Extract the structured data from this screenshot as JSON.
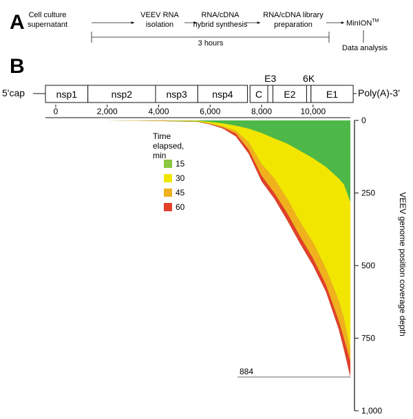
{
  "panel_a": {
    "letter": "A",
    "steps": [
      {
        "line1": "Cell culture",
        "line2": "supernatant"
      },
      {
        "line1": "VEEV RNA",
        "line2": "isolation"
      },
      {
        "line1": "RNA/cDNA",
        "line2": "hybrid synthesis"
      },
      {
        "line1": "RNA/cDNA library",
        "line2": "preparation"
      }
    ],
    "final_step": {
      "text": "MinION",
      "sup": "TM"
    },
    "duration_label": "3 hours",
    "output_label": "Data analysis"
  },
  "panel_b": {
    "letter": "B",
    "cap_label": "5ʹcap",
    "tail_label": "Poly(A)-3ʹ",
    "genes": [
      {
        "label": "nsp1",
        "start": -400,
        "end": 1250
      },
      {
        "label": "nsp2",
        "start": 1250,
        "end": 3880
      },
      {
        "label": "nsp3",
        "start": 3880,
        "end": 5520
      },
      {
        "label": "nsp4",
        "start": 5520,
        "end": 7450
      },
      {
        "label": "C",
        "start": 7550,
        "end": 8240
      },
      {
        "label": "E3",
        "start": 8240,
        "end": 8440
      },
      {
        "label": "E2",
        "start": 8440,
        "end": 9750
      },
      {
        "label": "6K",
        "start": 9750,
        "end": 9920
      },
      {
        "label": "E1",
        "start": 9920,
        "end": 11560
      }
    ]
  },
  "chart_data": {
    "type": "area",
    "xlabel": "",
    "ylabel": "VEEV genome position coverage depth",
    "x_ticks": [
      "0",
      "2,000",
      "4,000",
      "6,000",
      "8,000",
      "10,000"
    ],
    "x_tick_values": [
      0,
      2000,
      4000,
      6000,
      8000,
      10000
    ],
    "xlim": [
      -400,
      11450
    ],
    "y_ticks": [
      "0",
      "250",
      "500",
      "750",
      "1,000"
    ],
    "y_tick_values": [
      0,
      250,
      500,
      750,
      1000
    ],
    "ylim": [
      0,
      1000
    ],
    "y_inverted": true,
    "legend_title": "Time elapsed, min",
    "legend_position": "upper-middle",
    "annotation": "884",
    "annotation_value": 884,
    "series": [
      {
        "name": "15",
        "color": "#8dc63f",
        "x": [
          -400,
          2000,
          4000,
          5500,
          6000,
          6500,
          7000,
          7500,
          8000,
          8500,
          9000,
          9500,
          10000,
          10500,
          11000,
          11200,
          11450
        ],
        "y": [
          0,
          0,
          0,
          1,
          5,
          10,
          18,
          28,
          43,
          62,
          80,
          105,
          130,
          160,
          200,
          220,
          280
        ]
      },
      {
        "name": "30",
        "color": "#f2e600",
        "x": [
          -400,
          2000,
          4000,
          5500,
          6000,
          6500,
          7000,
          7500,
          8000,
          8500,
          9000,
          9500,
          10000,
          10500,
          11000,
          11200,
          11450
        ],
        "y": [
          0,
          0,
          1,
          3,
          10,
          20,
          35,
          75,
          150,
          200,
          270,
          350,
          420,
          510,
          620,
          680,
          790
        ]
      },
      {
        "name": "45",
        "color": "#f0b11d",
        "x": [
          -400,
          2000,
          4000,
          5500,
          6000,
          6500,
          7000,
          7500,
          8000,
          8500,
          9000,
          9500,
          10000,
          10500,
          11000,
          11200,
          11450
        ],
        "y": [
          0,
          0,
          1,
          4,
          12,
          24,
          45,
          100,
          190,
          250,
          320,
          400,
          475,
          565,
          690,
          750,
          830
        ]
      },
      {
        "name": "60",
        "color": "#e2402b",
        "x": [
          -400,
          2000,
          4000,
          5500,
          6000,
          6500,
          7000,
          7500,
          8000,
          8500,
          9000,
          9500,
          10000,
          10500,
          11000,
          11200,
          11450
        ],
        "y": [
          0,
          0,
          2,
          5,
          14,
          28,
          55,
          115,
          210,
          270,
          345,
          425,
          500,
          590,
          720,
          790,
          884
        ]
      }
    ],
    "background_color": "#4db848"
  }
}
